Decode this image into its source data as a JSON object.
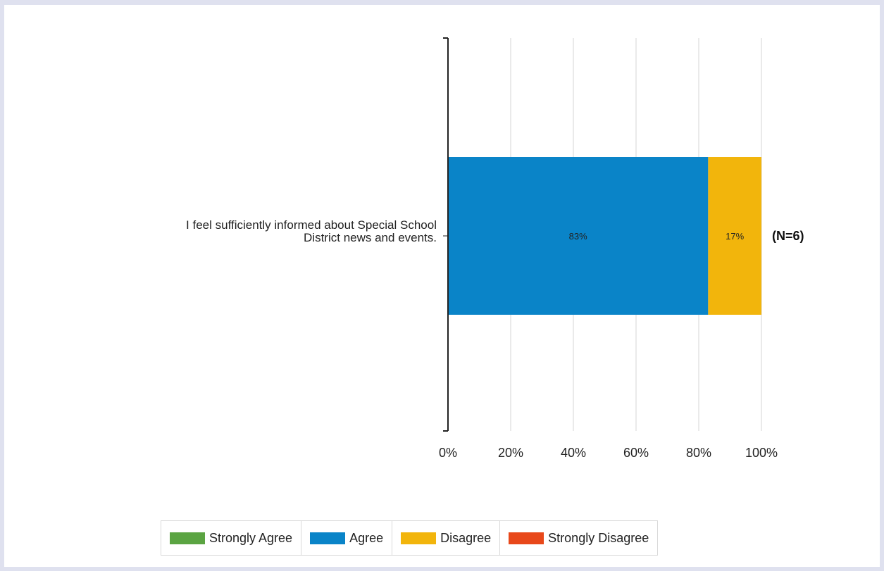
{
  "chart_data": {
    "type": "bar",
    "orientation": "horizontal",
    "stacked": true,
    "categories": [
      "I feel sufficiently informed about Special School District news and events."
    ],
    "category_label_lines": [
      [
        "I feel sufficiently informed about Special School",
        "District news and events."
      ]
    ],
    "series": [
      {
        "name": "Strongly Agree",
        "values": [
          0
        ],
        "color": "#5ba442"
      },
      {
        "name": "Agree",
        "values": [
          83
        ],
        "color": "#0a84c8"
      },
      {
        "name": "Disagree",
        "values": [
          17
        ],
        "color": "#f2b50c"
      },
      {
        "name": "Strongly Disagree",
        "values": [
          0
        ],
        "color": "#e8481a"
      }
    ],
    "data_labels": [
      "83%",
      "17%"
    ],
    "annotations": [
      "(N=6)"
    ],
    "xlim": [
      0,
      100
    ],
    "x_ticks": [
      "0%",
      "20%",
      "40%",
      "60%",
      "80%",
      "100%"
    ],
    "grid": true,
    "legend_position": "bottom",
    "title": "",
    "xlabel": "",
    "ylabel": ""
  }
}
